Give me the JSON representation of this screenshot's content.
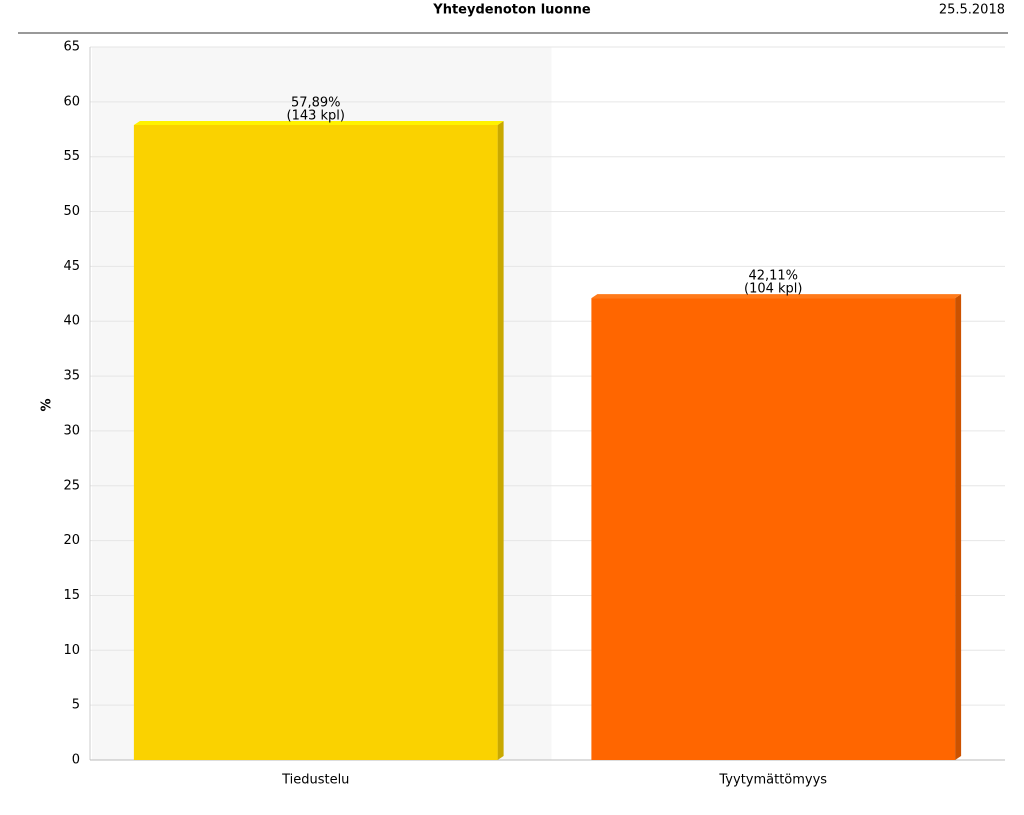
{
  "chart_data": {
    "type": "bar",
    "title": "Yhteydenoton luonne",
    "date": "25.5.2018",
    "y_label": "%",
    "categories": [
      "Tiedustelu",
      "Tyytymättömyys"
    ],
    "values": [
      57.89,
      42.11
    ],
    "value_labels": [
      "57,89%",
      "42,11%"
    ],
    "count_labels": [
      "(143 kpl)",
      "(104 kpl)"
    ],
    "colors": [
      "#fad200",
      "#ff6600"
    ],
    "side_colors": [
      "#c9a900",
      "#cc5200"
    ],
    "top_colors": [
      "#fff200",
      "#ff7a1a"
    ],
    "ylim": [
      0,
      65
    ],
    "yticks": [
      0,
      5,
      10,
      15,
      20,
      25,
      30,
      35,
      40,
      45,
      50,
      55,
      60,
      65
    ],
    "grid": true
  }
}
